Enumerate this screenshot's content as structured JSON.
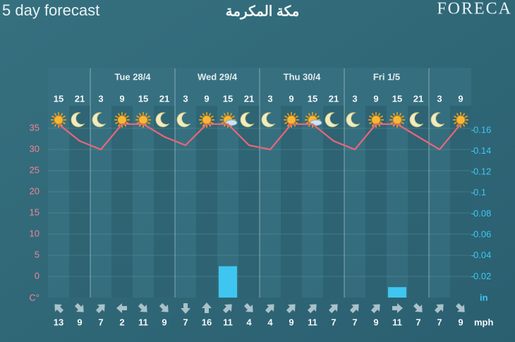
{
  "header": {
    "title": "5 day forecast",
    "city": "مكة المكرمة",
    "logo": "FORECA"
  },
  "chart_data": {
    "type": "forecast",
    "days": [
      "Tue 28/4",
      "Wed 29/4",
      "Thu 30/4",
      "Fri 1/5"
    ],
    "hours": [
      15,
      21,
      3,
      9,
      15,
      21,
      3,
      9,
      15,
      21,
      3,
      9,
      15,
      21,
      3,
      9,
      15,
      21,
      3,
      9
    ],
    "temperature": {
      "unit": "C°",
      "color": "#e8667a",
      "values": [
        36,
        32,
        30,
        36,
        36,
        33,
        31,
        36,
        36,
        31,
        30,
        36,
        36,
        32,
        30,
        36,
        36,
        33,
        30,
        36
      ]
    },
    "precipitation": {
      "unit": "in",
      "color": "#3ec6f0",
      "axis": "y2",
      "values": [
        0,
        0,
        0,
        0,
        0,
        0,
        0,
        0,
        0.03,
        0,
        0,
        0,
        0,
        0,
        0,
        0,
        0.01,
        0,
        0,
        0
      ]
    },
    "wind": {
      "unit": "mph",
      "speed": [
        13,
        9,
        7,
        2,
        11,
        9,
        7,
        16,
        11,
        4,
        4,
        9,
        11,
        7,
        7,
        9,
        11,
        7,
        7,
        9
      ],
      "direction": [
        315,
        135,
        45,
        270,
        135,
        135,
        180,
        0,
        45,
        135,
        45,
        45,
        45,
        45,
        45,
        45,
        90,
        135,
        45,
        135
      ]
    },
    "ylim": [
      -5,
      37
    ],
    "yticks": [
      0,
      5,
      10,
      15,
      20,
      25,
      30,
      35
    ],
    "y2lim": [
      0,
      0.17
    ],
    "y2ticks": [
      0.02,
      0.04,
      0.06,
      0.08,
      0.1,
      0.12,
      0.14,
      0.16
    ],
    "grid": true
  }
}
